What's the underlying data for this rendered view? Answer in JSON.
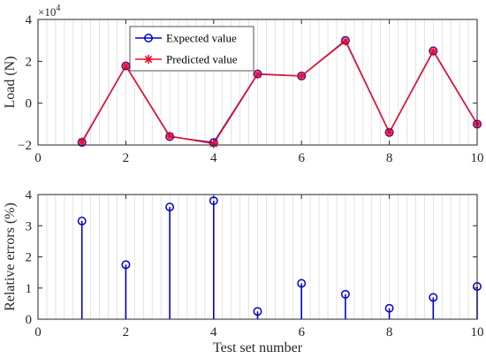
{
  "chart_data": [
    {
      "type": "line",
      "ylabel": "Load (N)",
      "y_exponent_label": "×10",
      "y_exponent_power": "4",
      "xlim": [
        0,
        10
      ],
      "ylim": [
        -2,
        4
      ],
      "y_scale": 10000,
      "xticks": [
        "0",
        "2",
        "4",
        "6",
        "8",
        "10"
      ],
      "yticks": [
        "−2",
        "0",
        "2",
        "4"
      ],
      "grid": "vertical-minor",
      "legend": "top-left",
      "x": [
        1,
        2,
        3,
        4,
        5,
        6,
        7,
        8,
        9,
        10
      ],
      "series": [
        {
          "name": "Expected value",
          "color": "#0000cc",
          "marker": "circle",
          "values": [
            -18800,
            17800,
            -16000,
            -18800,
            14000,
            13000,
            30000,
            -14000,
            25000,
            -10000
          ]
        },
        {
          "name": "Predicted value",
          "color": "#e8102a",
          "marker": "star",
          "values": [
            -18500,
            17800,
            -15800,
            -19300,
            13800,
            13000,
            29700,
            -14000,
            24800,
            -10000
          ]
        }
      ]
    },
    {
      "type": "stem",
      "xlabel": "Test set number",
      "ylabel": "Relative errors (%)",
      "xlim": [
        0,
        10
      ],
      "ylim": [
        0,
        4
      ],
      "xticks": [
        "0",
        "2",
        "4",
        "6",
        "8",
        "10"
      ],
      "yticks": [
        "0",
        "1",
        "2",
        "3",
        "4"
      ],
      "grid": "vertical-minor",
      "color": "#0000cc",
      "x": [
        1,
        2,
        3,
        4,
        5,
        6,
        7,
        8,
        9,
        10
      ],
      "values": [
        3.15,
        1.75,
        3.6,
        3.8,
        0.25,
        1.15,
        0.8,
        0.35,
        0.7,
        1.05
      ]
    }
  ]
}
